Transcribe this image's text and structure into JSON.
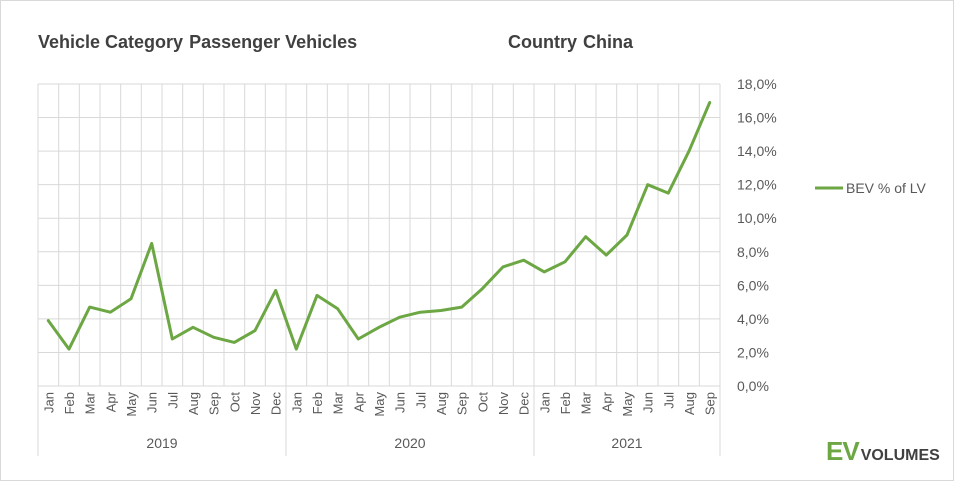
{
  "header": {
    "filter1_label": "Vehicle Category",
    "filter1_value": "Passenger Vehicles",
    "filter2_label": "Country",
    "filter2_value": "China"
  },
  "logo": {
    "ev": "EV",
    "volumes": "VOLUMES"
  },
  "colors": {
    "series": "#6ca744",
    "grid": "#d9d9d9",
    "text": "#595959"
  },
  "chart_data": {
    "type": "line",
    "title": "",
    "ylabel": "",
    "xlabel": "",
    "ylim": [
      0,
      18
    ],
    "yticks": [
      "0,0%",
      "2,0%",
      "4,0%",
      "6,0%",
      "8,0%",
      "10,0%",
      "12,0%",
      "14,0%",
      "16,0%",
      "18,0%"
    ],
    "legend": {
      "position": "right"
    },
    "years": [
      {
        "label": "2019",
        "start": 0,
        "count": 12
      },
      {
        "label": "2020",
        "start": 12,
        "count": 12
      },
      {
        "label": "2021",
        "start": 24,
        "count": 9
      }
    ],
    "categories": [
      "Jan",
      "Feb",
      "Mar",
      "Apr",
      "May",
      "Jun",
      "Jul",
      "Aug",
      "Sep",
      "Oct",
      "Nov",
      "Dec",
      "Jan",
      "Feb",
      "Mar",
      "Apr",
      "May",
      "Jun",
      "Jul",
      "Aug",
      "Sep",
      "Oct",
      "Nov",
      "Dec",
      "Jan",
      "Feb",
      "Mar",
      "Apr",
      "May",
      "Jun",
      "Jul",
      "Aug",
      "Sep"
    ],
    "series": [
      {
        "name": "BEV % of LV",
        "values": [
          3.9,
          2.2,
          4.7,
          4.4,
          5.2,
          8.5,
          2.8,
          3.5,
          2.9,
          2.6,
          3.3,
          5.7,
          2.2,
          5.4,
          4.6,
          2.8,
          3.5,
          4.1,
          4.4,
          4.5,
          4.7,
          5.8,
          7.1,
          7.5,
          6.8,
          7.4,
          8.9,
          7.8,
          9.0,
          12.0,
          11.5,
          14.0,
          16.9
        ]
      }
    ]
  }
}
